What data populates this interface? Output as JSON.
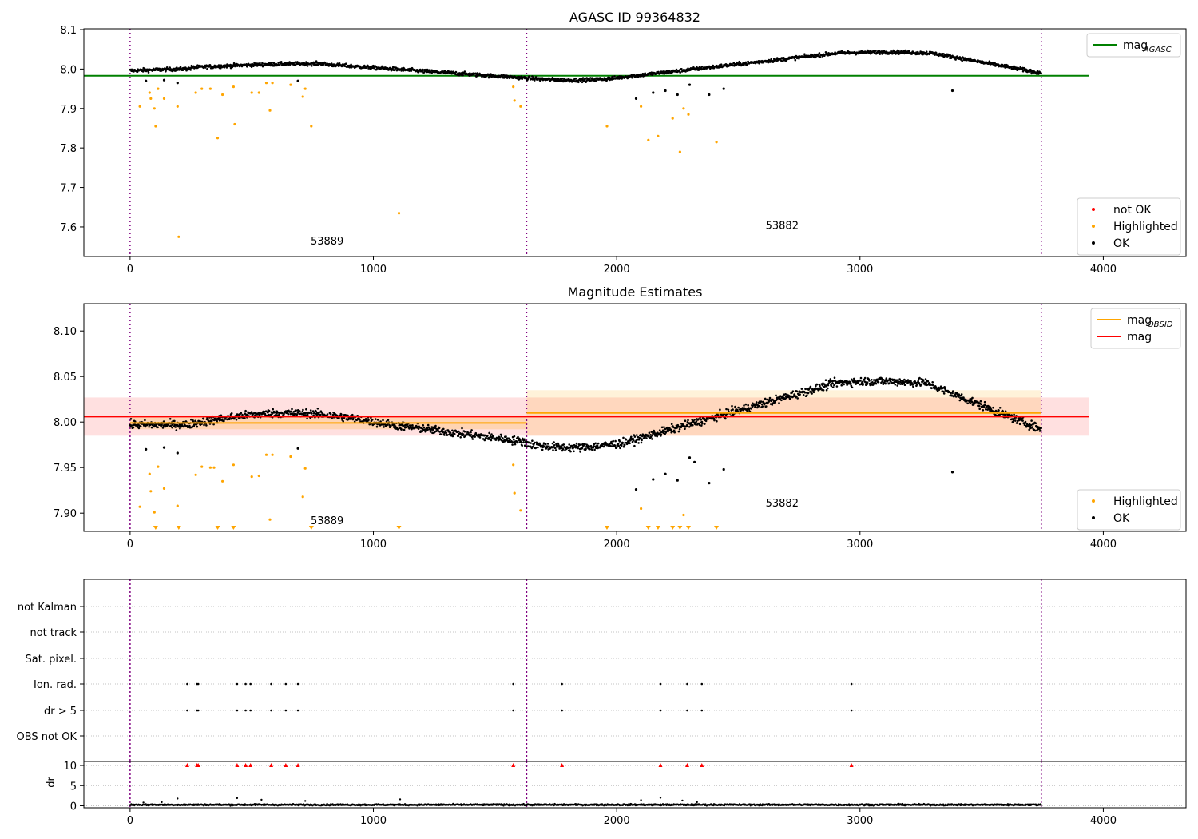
{
  "chart_data": [
    {
      "type": "scatter",
      "title": "AGASC ID 99364832",
      "xlabel": "",
      "ylabel": "",
      "xlim": [
        -190,
        4340
      ],
      "ylim": [
        7.525,
        8.102
      ],
      "x_ticks": [
        0,
        1000,
        2000,
        3000,
        4000
      ],
      "x_tick_labels": [
        "0",
        "1000",
        "2000",
        "3000",
        "4000"
      ],
      "y_ticks": [
        7.6,
        7.7,
        7.8,
        7.9,
        8.0,
        8.1
      ],
      "y_tick_labels": [
        "7.6",
        "7.7",
        "7.8",
        "7.9",
        "8.0",
        "8.1"
      ],
      "obs_boundaries": [
        0,
        1630,
        3745
      ],
      "obsids": [
        {
          "x": 810,
          "y": 7.555,
          "label": "53889"
        },
        {
          "x": 2680,
          "y": 7.595,
          "label": "53882"
        }
      ],
      "reference_lines": [
        {
          "name": "mag",
          "sub": "AGASC",
          "y": 7.983,
          "x_range": [
            -190,
            3940
          ],
          "color": "#008000"
        }
      ],
      "legends": [
        {
          "position": "top-right",
          "entries": [
            {
              "label": "mag",
              "sub": "AGASC",
              "kind": "line",
              "color": "#008000"
            }
          ]
        },
        {
          "position": "lower-right",
          "entries": [
            {
              "label": "not OK",
              "kind": "dot",
              "color": "#ff0000"
            },
            {
              "label": "Highlighted",
              "kind": "dot",
              "color": "#ffa500"
            },
            {
              "label": "OK",
              "kind": "dot",
              "color": "#000000"
            }
          ]
        }
      ],
      "series": [
        {
          "name": "Highlighted",
          "color": "#ffa500",
          "points": [
            [
              40,
              7.905
            ],
            [
              80,
              7.94
            ],
            [
              85,
              7.925
            ],
            [
              100,
              7.9
            ],
            [
              105,
              7.855
            ],
            [
              115,
              7.95
            ],
            [
              140,
              7.925
            ],
            [
              195,
              7.905
            ],
            [
              200,
              7.575
            ],
            [
              270,
              7.94
            ],
            [
              295,
              7.95
            ],
            [
              330,
              7.95
            ],
            [
              360,
              7.825
            ],
            [
              380,
              7.935
            ],
            [
              425,
              7.955
            ],
            [
              430,
              7.86
            ],
            [
              500,
              7.94
            ],
            [
              530,
              7.94
            ],
            [
              560,
              7.965
            ],
            [
              575,
              7.895
            ],
            [
              585,
              7.965
            ],
            [
              660,
              7.96
            ],
            [
              710,
              7.93
            ],
            [
              720,
              7.95
            ],
            [
              745,
              7.855
            ],
            [
              1105,
              7.635
            ],
            [
              1575,
              7.955
            ],
            [
              1580,
              7.92
            ],
            [
              1605,
              7.905
            ],
            [
              1960,
              7.855
            ],
            [
              2100,
              7.905
            ],
            [
              2130,
              7.82
            ],
            [
              2170,
              7.83
            ],
            [
              2230,
              7.875
            ],
            [
              2260,
              7.79
            ],
            [
              2275,
              7.9
            ],
            [
              2295,
              7.885
            ],
            [
              2410,
              7.815
            ]
          ]
        },
        {
          "name": "OK outliers",
          "color": "#000000",
          "points": [
            [
              65,
              7.97
            ],
            [
              140,
              7.972
            ],
            [
              195,
              7.965
            ],
            [
              690,
              7.97
            ],
            [
              2080,
              7.925
            ],
            [
              2150,
              7.94
            ],
            [
              2200,
              7.945
            ],
            [
              2250,
              7.935
            ],
            [
              2300,
              7.96
            ],
            [
              2380,
              7.935
            ],
            [
              2440,
              7.95
            ],
            [
              3380,
              7.945
            ]
          ]
        },
        {
          "name": "OK",
          "color": "#000000",
          "trend": "agasc"
        }
      ]
    },
    {
      "type": "scatter",
      "title": "Magnitude Estimates",
      "xlabel": "",
      "ylabel": "",
      "xlim": [
        -190,
        4340
      ],
      "ylim": [
        7.88,
        8.13
      ],
      "x_ticks": [
        0,
        1000,
        2000,
        3000,
        4000
      ],
      "x_tick_labels": [
        "0",
        "1000",
        "2000",
        "3000",
        "4000"
      ],
      "y_ticks": [
        7.9,
        7.95,
        8.0,
        8.05,
        8.1
      ],
      "y_tick_labels": [
        "7.90",
        "7.95",
        "8.00",
        "8.05",
        "8.10"
      ],
      "obs_boundaries": [
        0,
        1630,
        3745
      ],
      "obsids": [
        {
          "x": 810,
          "y": 7.888,
          "label": "53889"
        },
        {
          "x": 2680,
          "y": 7.907,
          "label": "53882"
        }
      ],
      "bands": [
        {
          "x_range": [
            -190,
            3940
          ],
          "y_range": [
            7.985,
            8.027
          ],
          "color": "#ff0000",
          "opacity": 0.12
        },
        {
          "x_range": [
            0,
            1630
          ],
          "y_range": [
            7.992,
            8.007
          ],
          "color": "#ffa500",
          "opacity": 0.2
        },
        {
          "x_range": [
            1630,
            3745
          ],
          "y_range": [
            7.985,
            8.035
          ],
          "color": "#ffa500",
          "opacity": 0.15
        }
      ],
      "reference_lines": [
        {
          "name": "mag OBSID 53889",
          "y": 7.999,
          "x_range": [
            0,
            1630
          ],
          "color": "#ffa500"
        },
        {
          "name": "mag OBSID 53882",
          "y": 8.01,
          "x_range": [
            1630,
            3745
          ],
          "color": "#ffa500"
        },
        {
          "name": "mag",
          "y": 8.006,
          "x_range": [
            -190,
            3940
          ],
          "color": "#ff0000"
        }
      ],
      "legends": [
        {
          "position": "top-right",
          "entries": [
            {
              "label": "mag",
              "sub": "OBSID",
              "kind": "line",
              "color": "#ffa500"
            },
            {
              "label": "mag",
              "kind": "line",
              "color": "#ff0000"
            }
          ]
        },
        {
          "position": "lower-right",
          "entries": [
            {
              "label": "Highlighted",
              "kind": "dot",
              "color": "#ffa500"
            },
            {
              "label": "OK",
              "kind": "dot",
              "color": "#000000"
            }
          ]
        }
      ],
      "series": [
        {
          "name": "Highlighted",
          "color": "#ffa500",
          "points": [
            [
              40,
              7.907
            ],
            [
              80,
              7.943
            ],
            [
              85,
              7.924
            ],
            [
              100,
              7.901
            ],
            [
              115,
              7.951
            ],
            [
              140,
              7.927
            ],
            [
              195,
              7.908
            ],
            [
              270,
              7.942
            ],
            [
              295,
              7.951
            ],
            [
              330,
              7.95
            ],
            [
              345,
              7.95
            ],
            [
              380,
              7.935
            ],
            [
              425,
              7.953
            ],
            [
              500,
              7.94
            ],
            [
              530,
              7.941
            ],
            [
              560,
              7.964
            ],
            [
              575,
              7.893
            ],
            [
              585,
              7.964
            ],
            [
              660,
              7.962
            ],
            [
              710,
              7.918
            ],
            [
              720,
              7.949
            ],
            [
              1575,
              7.953
            ],
            [
              1580,
              7.922
            ],
            [
              1605,
              7.903
            ],
            [
              2100,
              7.905
            ],
            [
              2275,
              7.898
            ]
          ]
        },
        {
          "name": "Highlighted lower-limit",
          "color": "#ffa500",
          "points": [
            [
              105,
              7.882
            ],
            [
              200,
              7.882
            ],
            [
              360,
              7.882
            ],
            [
              425,
              7.882
            ],
            [
              745,
              7.882
            ],
            [
              1105,
              7.882
            ],
            [
              1960,
              7.882
            ],
            [
              2130,
              7.882
            ],
            [
              2170,
              7.882
            ],
            [
              2230,
              7.882
            ],
            [
              2260,
              7.882
            ],
            [
              2295,
              7.882
            ],
            [
              2410,
              7.882
            ]
          ]
        },
        {
          "name": "OK outliers",
          "color": "#000000",
          "points": [
            [
              65,
              7.97
            ],
            [
              140,
              7.972
            ],
            [
              195,
              7.966
            ],
            [
              690,
              7.971
            ],
            [
              2080,
              7.926
            ],
            [
              2150,
              7.937
            ],
            [
              2200,
              7.943
            ],
            [
              2250,
              7.936
            ],
            [
              2300,
              7.961
            ],
            [
              2320,
              7.956
            ],
            [
              2380,
              7.933
            ],
            [
              2440,
              7.948
            ],
            [
              3380,
              7.945
            ]
          ]
        },
        {
          "name": "OK",
          "color": "#000000",
          "trend": "estimates"
        }
      ]
    },
    {
      "type": "scatter",
      "title": "",
      "xlim": [
        -190,
        4340
      ],
      "x_ticks": [
        0,
        1000,
        2000,
        3000,
        4000
      ],
      "x_tick_labels": [
        "0",
        "1000",
        "2000",
        "3000",
        "4000"
      ],
      "obs_boundaries": [
        0,
        1630,
        3745
      ],
      "flags": {
        "categories": [
          "not Kalman",
          "not track",
          "Sat. pixel.",
          "Ion. rad.",
          "dr > 5",
          "OBS not OK"
        ],
        "flagged_times": [
          235,
          275,
          280,
          440,
          475,
          495,
          580,
          640,
          690,
          1575,
          1775,
          2180,
          2290,
          2350,
          2965
        ],
        "flagged_categories": [
          "Ion. rad.",
          "dr > 5"
        ]
      },
      "dr_panel": {
        "ylabel": "dr",
        "ylim": [
          -0.5,
          11
        ],
        "y_ticks": [
          0,
          5,
          10
        ],
        "y_tick_labels": [
          "0",
          "5",
          "10"
        ],
        "clip_value": 10,
        "clipped_times": [
          235,
          275,
          280,
          440,
          475,
          495,
          580,
          640,
          690,
          1575,
          1775,
          2180,
          2290,
          2350,
          2965
        ],
        "spikes": [
          [
            55,
            0.8
          ],
          [
            130,
            0.9
          ],
          [
            195,
            1.8
          ],
          [
            440,
            1.9
          ],
          [
            540,
            1.5
          ],
          [
            720,
            1.2
          ],
          [
            1110,
            1.6
          ],
          [
            2100,
            1.4
          ],
          [
            2180,
            2.0
          ],
          [
            2270,
            1.3
          ],
          [
            2330,
            0.9
          ]
        ],
        "baseline": 0.25
      }
    }
  ]
}
